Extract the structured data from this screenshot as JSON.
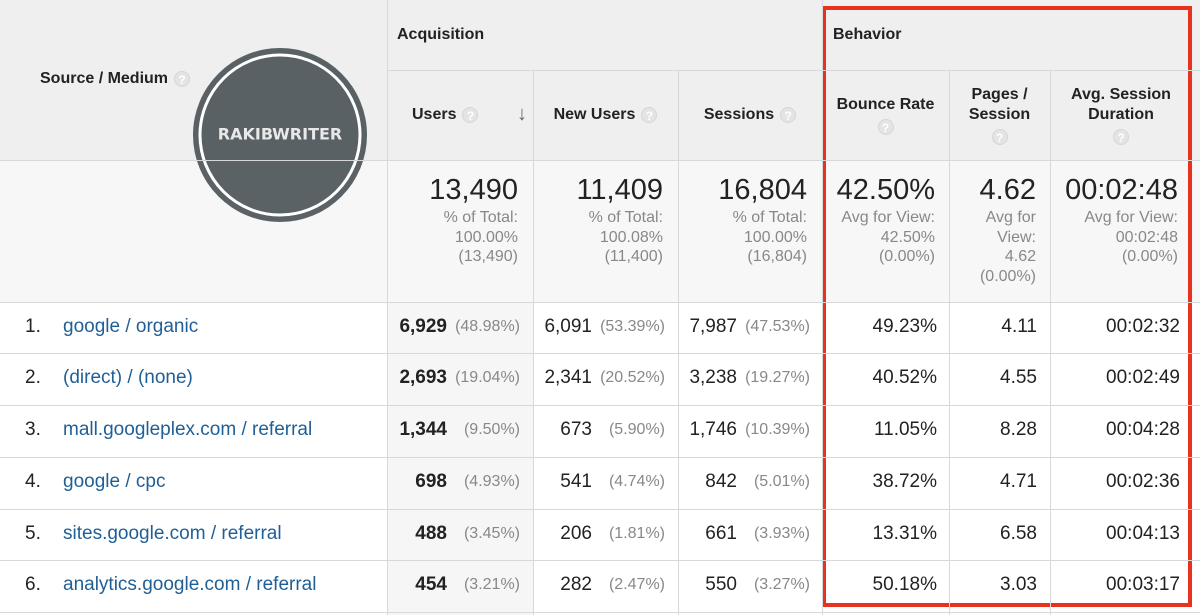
{
  "watermark": "RAKIBWRITER",
  "header": {
    "source": "Source / Medium",
    "acquisition": "Acquisition",
    "behavior": "Behavior",
    "users": "Users",
    "new_users": "New Users",
    "sessions": "Sessions",
    "bounce_rate": "Bounce Rate",
    "pages_session": "Pages / Session",
    "avg_duration": "Avg. Session Duration"
  },
  "totals": [
    {
      "value": "13,490",
      "note": [
        "% of Total:",
        "100.00%",
        "(13,490)"
      ]
    },
    {
      "value": "11,409",
      "note": [
        "% of Total:",
        "100.08%",
        "(11,400)"
      ]
    },
    {
      "value": "16,804",
      "note": [
        "% of Total:",
        "100.00%",
        "(16,804)"
      ]
    },
    {
      "value": "42.50%",
      "note": [
        "Avg for View:",
        "42.50%",
        "(0.00%)"
      ]
    },
    {
      "value": "4.62",
      "note": [
        "Avg for",
        "View:",
        "4.62",
        "(0.00%)"
      ]
    },
    {
      "value": "00:02:48",
      "note": [
        "Avg for View:",
        "00:02:48",
        "(0.00%)"
      ]
    }
  ],
  "rows": [
    {
      "rank": "1.",
      "source": "google / organic",
      "users": "6,929",
      "users_pct": "(48.98%)",
      "new_users": "6,091",
      "new_users_pct": "(53.39%)",
      "sessions": "7,987",
      "sessions_pct": "(47.53%)",
      "bounce_rate": "49.23%",
      "pages_session": "4.11",
      "avg_duration": "00:02:32"
    },
    {
      "rank": "2.",
      "source": "(direct) / (none)",
      "users": "2,693",
      "users_pct": "(19.04%)",
      "new_users": "2,341",
      "new_users_pct": "(20.52%)",
      "sessions": "3,238",
      "sessions_pct": "(19.27%)",
      "bounce_rate": "40.52%",
      "pages_session": "4.55",
      "avg_duration": "00:02:49"
    },
    {
      "rank": "3.",
      "source": "mall.googleplex.com / referral",
      "users": "1,344",
      "users_pct": "(9.50%)",
      "new_users": "673",
      "new_users_pct": "(5.90%)",
      "sessions": "1,746",
      "sessions_pct": "(10.39%)",
      "bounce_rate": "11.05%",
      "pages_session": "8.28",
      "avg_duration": "00:04:28"
    },
    {
      "rank": "4.",
      "source": "google / cpc",
      "users": "698",
      "users_pct": "(4.93%)",
      "new_users": "541",
      "new_users_pct": "(4.74%)",
      "sessions": "842",
      "sessions_pct": "(5.01%)",
      "bounce_rate": "38.72%",
      "pages_session": "4.71",
      "avg_duration": "00:02:36"
    },
    {
      "rank": "5.",
      "source": "sites.google.com / referral",
      "users": "488",
      "users_pct": "(3.45%)",
      "new_users": "206",
      "new_users_pct": "(1.81%)",
      "sessions": "661",
      "sessions_pct": "(3.93%)",
      "bounce_rate": "13.31%",
      "pages_session": "6.58",
      "avg_duration": "00:04:13"
    },
    {
      "rank": "6.",
      "source": "analytics.google.com / referral",
      "users": "454",
      "users_pct": "(3.21%)",
      "new_users": "282",
      "new_users_pct": "(2.47%)",
      "sessions": "550",
      "sessions_pct": "(3.27%)",
      "bounce_rate": "50.18%",
      "pages_session": "3.03",
      "avg_duration": "00:03:17"
    }
  ]
}
